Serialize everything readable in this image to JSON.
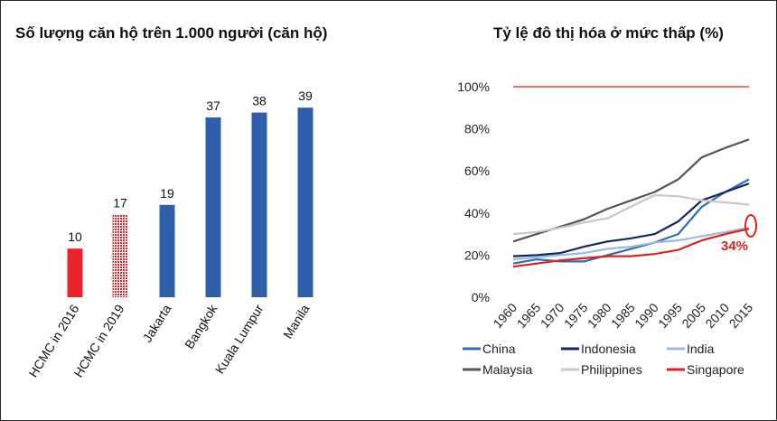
{
  "chart_data": [
    {
      "type": "bar",
      "title": "Số lượng căn hộ trên 1.000 người (căn hộ)",
      "categories": [
        "HCMC in 2016",
        "HCMC in 2019",
        "Jakarta",
        "Bangkok",
        "Kuala Lumpur",
        "Manila"
      ],
      "values": [
        10,
        17,
        19,
        37,
        38,
        39
      ],
      "colors": [
        "#e8232a",
        "#e8232a",
        "#2e5fa8",
        "#2e5fa8",
        "#2e5fa8",
        "#2e5fa8"
      ],
      "patterns": [
        "solid",
        "dotted",
        "solid",
        "solid",
        "solid",
        "solid"
      ],
      "value_labels": [
        "10",
        "17",
        "19",
        "37",
        "38",
        "39"
      ]
    },
    {
      "type": "line",
      "title": "Tỷ lệ đô thị hóa ở mức thấp (%)",
      "x": [
        "1960",
        "1965",
        "1970",
        "1975",
        "1980",
        "1985",
        "1990",
        "1995",
        "2005",
        "2010",
        "2015"
      ],
      "ylim": [
        0,
        100
      ],
      "yticks": [
        "0%",
        "20%",
        "40%",
        "60%",
        "80%",
        "100%"
      ],
      "legend_position": "bottom",
      "series": [
        {
          "name": "China",
          "color": "#2c6fb3",
          "values": [
            16,
            18,
            17,
            17,
            20,
            23,
            26,
            30,
            43,
            50,
            56
          ]
        },
        {
          "name": "Indonesia",
          "color": "#14285f",
          "values": [
            19.5,
            20,
            21,
            24,
            26.5,
            28,
            30,
            36,
            46,
            50,
            54
          ]
        },
        {
          "name": "India",
          "color": "#9cbbe0",
          "values": [
            18,
            19,
            20,
            21,
            23,
            24,
            26,
            27,
            29,
            31,
            33
          ]
        },
        {
          "name": "Malaysia",
          "color": "#555555",
          "values": [
            26.5,
            30,
            33.5,
            37,
            42,
            46,
            50,
            56,
            66.5,
            71,
            75
          ]
        },
        {
          "name": "Philippines",
          "color": "#c8c8c8",
          "values": [
            30,
            31,
            33,
            35.5,
            37.5,
            43,
            48.5,
            48,
            46,
            45,
            44
          ]
        },
        {
          "name": "Singapore",
          "color": "#e02020",
          "values": [
            100,
            100,
            100,
            100,
            100,
            100,
            100,
            100,
            100,
            100,
            100
          ]
        },
        {
          "name": "",
          "color": "#e02020",
          "values": [
            14.5,
            16,
            17.5,
            18.5,
            19.5,
            19.5,
            20.5,
            22.5,
            27,
            30,
            32.5
          ]
        }
      ],
      "annotation": {
        "text": "34%",
        "color": "#e02020"
      }
    }
  ]
}
